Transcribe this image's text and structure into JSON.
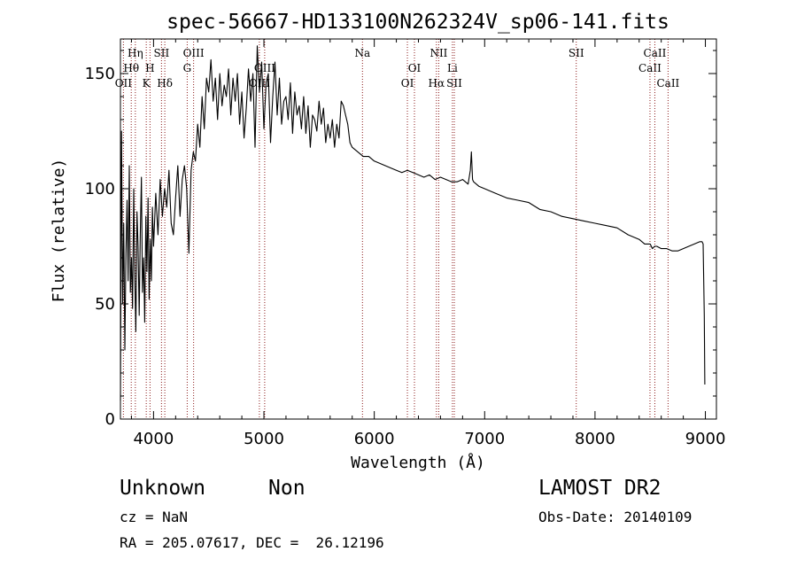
{
  "chart_data": {
    "type": "line",
    "title": "spec-56667-HD133100N262324V_sp06-141.fits",
    "xlabel": "Wavelength (Å)",
    "ylabel": "Flux (relative)",
    "xlim": [
      3700,
      9100
    ],
    "ylim": [
      0,
      165
    ],
    "xticks": [
      4000,
      5000,
      6000,
      7000,
      8000,
      9000
    ],
    "yticks": [
      0,
      50,
      100,
      150
    ],
    "grid": false,
    "line_color": "#000000",
    "marker_color": "#8b1a1a",
    "series": [
      {
        "x": [
          3700,
          3710,
          3720,
          3730,
          3740,
          3750,
          3760,
          3770,
          3780,
          3790,
          3800,
          3810,
          3820,
          3830,
          3840,
          3850,
          3860,
          3870,
          3880,
          3890,
          3900,
          3910,
          3920,
          3930,
          3940,
          3950,
          3960,
          3970,
          3980,
          3990,
          4000,
          4020,
          4040,
          4060,
          4080,
          4100,
          4120,
          4140,
          4160,
          4180,
          4200,
          4220,
          4240,
          4260,
          4280,
          4300,
          4320,
          4340,
          4360,
          4380,
          4400,
          4420,
          4440,
          4460,
          4480,
          4500,
          4520,
          4540,
          4560,
          4580,
          4600,
          4620,
          4640,
          4660,
          4680,
          4700,
          4720,
          4740,
          4760,
          4780,
          4800,
          4820,
          4840,
          4860,
          4880,
          4900,
          4920,
          4940,
          4960,
          4980,
          5000,
          5020,
          5040,
          5060,
          5080,
          5100,
          5120,
          5140,
          5160,
          5180,
          5200,
          5220,
          5240,
          5260,
          5280,
          5300,
          5320,
          5340,
          5360,
          5380,
          5400,
          5420,
          5440,
          5460,
          5480,
          5500,
          5520,
          5540,
          5560,
          5580,
          5600,
          5620,
          5640,
          5660,
          5680,
          5700,
          5720,
          5740,
          5760,
          5780,
          5800,
          5850,
          5900,
          5950,
          6000,
          6050,
          6100,
          6150,
          6200,
          6250,
          6300,
          6350,
          6400,
          6450,
          6500,
          6550,
          6600,
          6650,
          6700,
          6750,
          6800,
          6850,
          6870,
          6880,
          6890,
          6900,
          6950,
          7000,
          7100,
          7200,
          7300,
          7400,
          7500,
          7600,
          7700,
          7800,
          7900,
          8000,
          8100,
          8200,
          8300,
          8400,
          8450,
          8500,
          8520,
          8540,
          8560,
          8600,
          8650,
          8700,
          8750,
          8800,
          8850,
          8900,
          8950,
          8970,
          8980,
          8990,
          8995
        ],
        "y": [
          8,
          125,
          50,
          85,
          30,
          72,
          95,
          60,
          110,
          55,
          70,
          48,
          100,
          62,
          38,
          90,
          75,
          45,
          80,
          105,
          55,
          70,
          42,
          88,
          64,
          96,
          52,
          78,
          60,
          92,
          75,
          98,
          80,
          104,
          88,
          100,
          92,
          108,
          85,
          80,
          96,
          110,
          88,
          104,
          110,
          100,
          72,
          108,
          116,
          112,
          128,
          118,
          140,
          126,
          148,
          142,
          156,
          138,
          148,
          130,
          150,
          136,
          145,
          140,
          152,
          132,
          148,
          138,
          150,
          128,
          142,
          122,
          135,
          152,
          138,
          150,
          118,
          162,
          142,
          155,
          126,
          146,
          150,
          120,
          140,
          155,
          132,
          148,
          128,
          138,
          140,
          130,
          146,
          124,
          142,
          132,
          136,
          126,
          140,
          124,
          136,
          118,
          132,
          130,
          125,
          138,
          128,
          135,
          120,
          128,
          122,
          130,
          118,
          128,
          122,
          138,
          136,
          132,
          128,
          120,
          118,
          116,
          114,
          114,
          112,
          111,
          110,
          109,
          108,
          107,
          108,
          107,
          106,
          105,
          106,
          104,
          105,
          104,
          103,
          103,
          104,
          102,
          108,
          116,
          104,
          103,
          101,
          100,
          98,
          96,
          95,
          94,
          91,
          90,
          88,
          87,
          86,
          85,
          84,
          83,
          80,
          78,
          76,
          76,
          74,
          75,
          75,
          74,
          74,
          73,
          73,
          74,
          75,
          76,
          77,
          77,
          76,
          45,
          15
        ]
      }
    ],
    "line_markers": [
      {
        "label": "Hη",
        "x": 3835,
        "row": 1
      },
      {
        "label": "Hθ",
        "x": 3798,
        "row": 2
      },
      {
        "label": "OII",
        "x": 3727,
        "row": 3
      },
      {
        "label": "K",
        "x": 3934,
        "row": 3
      },
      {
        "label": "H",
        "x": 3968,
        "row": 2
      },
      {
        "label": "SII",
        "x": 4072,
        "row": 1
      },
      {
        "label": "Hδ",
        "x": 4102,
        "row": 3
      },
      {
        "label": "G",
        "x": 4305,
        "row": 2
      },
      {
        "label": "OIII",
        "x": 4363,
        "row": 1
      },
      {
        "label": "OIII",
        "x": 4959,
        "row": 3
      },
      {
        "label": "OIII",
        "x": 5007,
        "row": 2
      },
      {
        "label": "Na",
        "x": 5893,
        "row": 1
      },
      {
        "label": "OI",
        "x": 6300,
        "row": 3
      },
      {
        "label": "OI",
        "x": 6364,
        "row": 2
      },
      {
        "label": "NII",
        "x": 6584,
        "row": 1
      },
      {
        "label": "Hα",
        "x": 6563,
        "row": 3
      },
      {
        "label": "Li",
        "x": 6708,
        "row": 2
      },
      {
        "label": "SII",
        "x": 6725,
        "row": 3
      },
      {
        "label": "SII",
        "x": 7830,
        "row": 1
      },
      {
        "label": "CaII",
        "x": 8498,
        "row": 2
      },
      {
        "label": "CaII",
        "x": 8542,
        "row": 1
      },
      {
        "label": "CaII",
        "x": 8662,
        "row": 3
      }
    ]
  },
  "info": {
    "object_class": "Unknown",
    "subclass": "Non",
    "survey": "LAMOST DR2",
    "cz": "cz = NaN",
    "obs_date": "Obs-Date: 20140109",
    "radec": "RA = 205.07617, DEC =  26.12196"
  }
}
